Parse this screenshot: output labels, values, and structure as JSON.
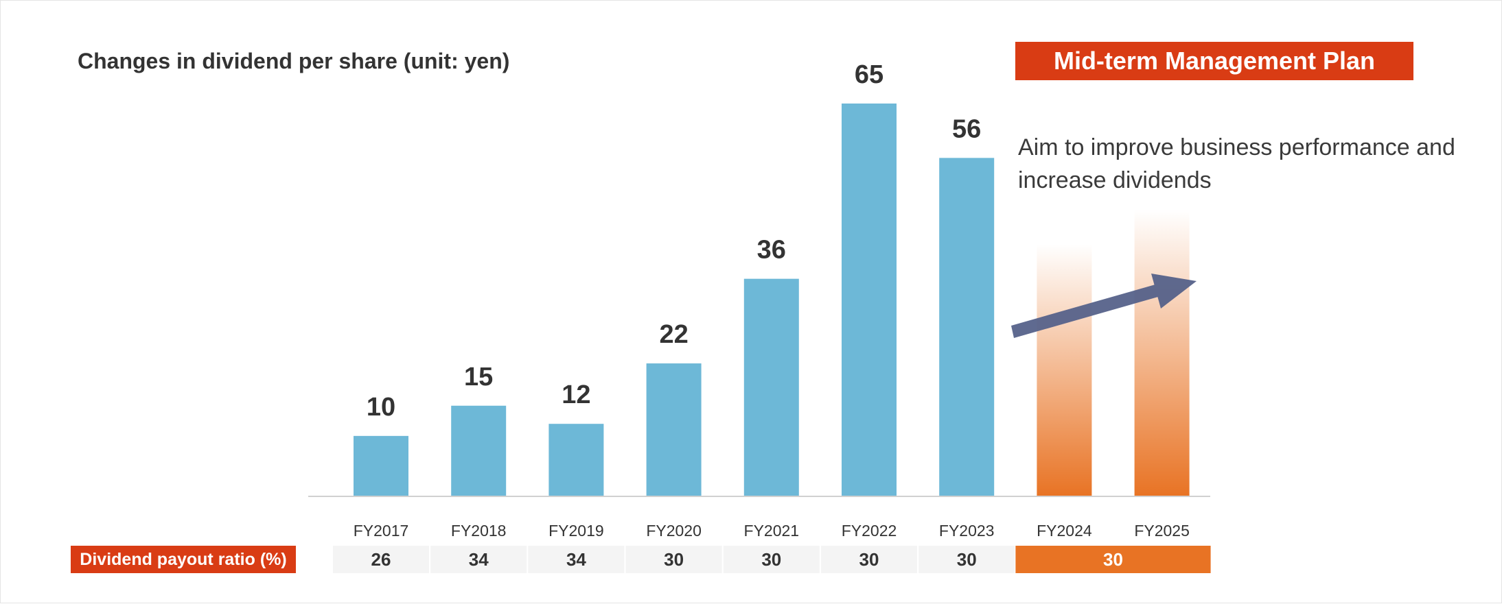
{
  "colors": {
    "bar": "#6db8d7",
    "accent_red": "#d93c14",
    "accent_orange": "#e87324",
    "arrow": "#56628a",
    "axis": "#d0d0d0",
    "cell_bg": "#f4f4f4",
    "text": "#333333"
  },
  "title": "Changes in dividend per share (unit: yen)",
  "plan": {
    "badge": "Mid-term Management Plan",
    "description": "Aim to improve business performance and increase dividends",
    "arrow_icon": "trend-up-arrow-icon"
  },
  "payout": {
    "label": "Dividend payout ratio (%)",
    "values": [
      "26",
      "34",
      "34",
      "30",
      "30",
      "30",
      "30"
    ],
    "plan_value": "30"
  },
  "chart_data": {
    "type": "bar",
    "title": "Changes in dividend per share (unit: yen)",
    "categories": [
      "FY2017",
      "FY2018",
      "FY2019",
      "FY2020",
      "FY2021",
      "FY2022",
      "FY2023",
      "FY2024",
      "FY2025"
    ],
    "series": [
      {
        "values": [
          10,
          15,
          12,
          22,
          36,
          65,
          56,
          null,
          null
        ]
      }
    ],
    "planned_categories": [
      "FY2024",
      "FY2025"
    ],
    "ylim": [
      0,
      65
    ],
    "grid": false,
    "table": {
      "label": "Dividend payout ratio (%)",
      "values": [
        26,
        34,
        34,
        30,
        30,
        30,
        30,
        30,
        30
      ]
    }
  }
}
